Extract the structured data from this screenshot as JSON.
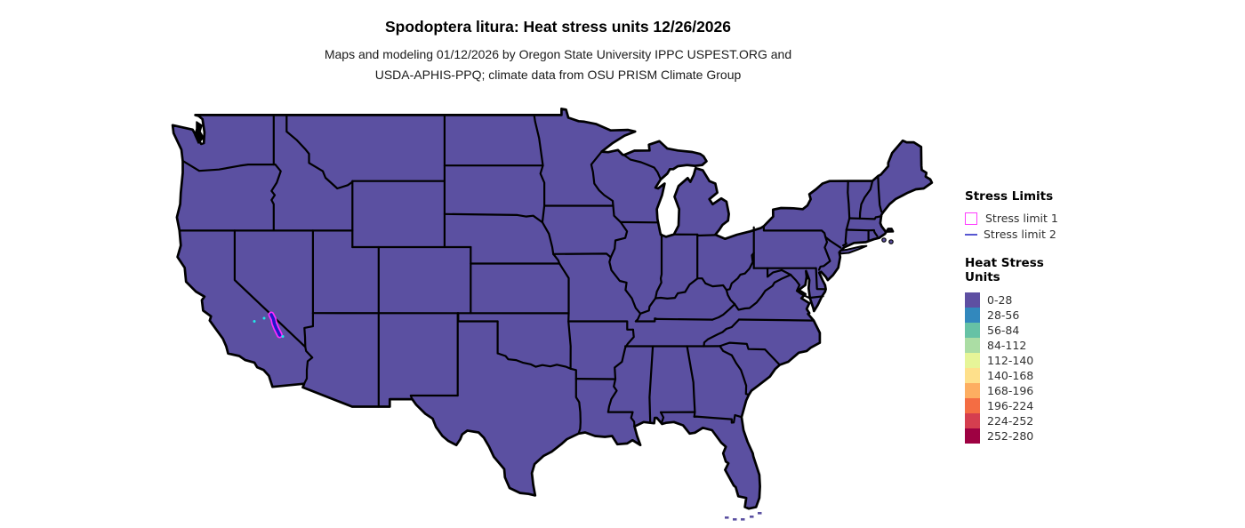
{
  "header": {
    "title": "Spodoptera litura: Heat stress units 12/26/2026",
    "subtitle_line1": "Maps and modeling 01/12/2026 by Oregon State University IPPC USPEST.ORG and",
    "subtitle_line2": "USDA-APHIS-PPQ; climate data from OSU PRISM Climate Group"
  },
  "map": {
    "region": "continental United States",
    "fill_color": "#5b50a1",
    "border_color": "#000000",
    "background_color": "#ffffff",
    "dominant_bin_label": "0-28",
    "anomaly": {
      "location": "eastern California (Death Valley region)",
      "outline_color": "#ff2bff",
      "fill_color": "#2018c8",
      "accent_color": "#22e8e8"
    }
  },
  "legend": {
    "stress_limits": {
      "heading": "Stress Limits",
      "entries": [
        {
          "label": "Stress limit 1",
          "symbol": "square-outline",
          "color": "#ff3dff"
        },
        {
          "label": "Stress limit 2",
          "symbol": "line",
          "color": "#5757d1"
        }
      ]
    },
    "heat_stress": {
      "heading_line1": "Heat Stress",
      "heading_line2": "Units",
      "entries": [
        {
          "label": "0-28",
          "color": "#5e4fa2"
        },
        {
          "label": "28-56",
          "color": "#3288bd"
        },
        {
          "label": "56-84",
          "color": "#66c2a5"
        },
        {
          "label": "84-112",
          "color": "#abdda4"
        },
        {
          "label": "112-140",
          "color": "#e6f598"
        },
        {
          "label": "140-168",
          "color": "#fee08b"
        },
        {
          "label": "168-196",
          "color": "#fdae61"
        },
        {
          "label": "196-224",
          "color": "#f46d43"
        },
        {
          "label": "224-252",
          "color": "#d53e4f"
        },
        {
          "label": "252-280",
          "color": "#9e0142"
        }
      ]
    }
  }
}
